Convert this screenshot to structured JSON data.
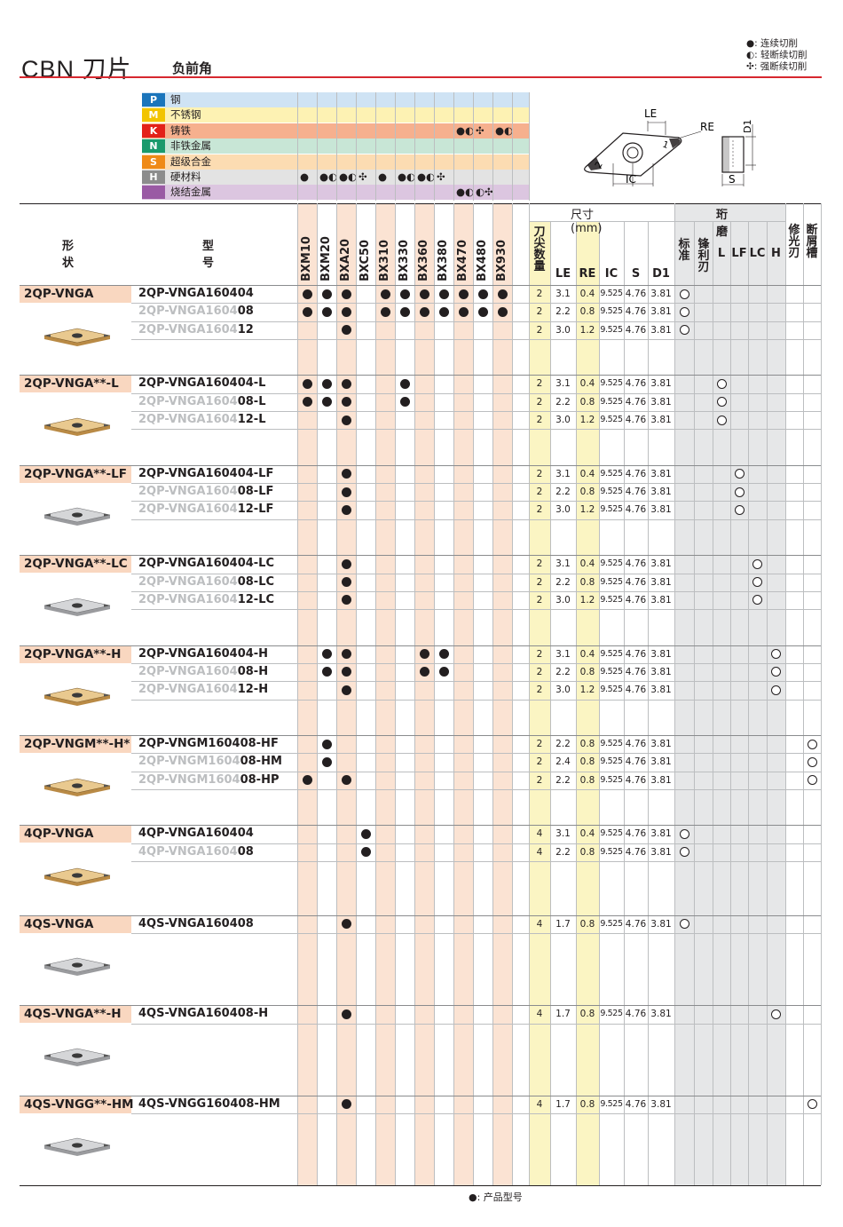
{
  "header": {
    "title": "CBN 刀片",
    "subtitle": "负前角",
    "legend": [
      {
        "symbol": "●",
        "label": ": 连续切削"
      },
      {
        "symbol": "◐",
        "label": ": 轻断续切削"
      },
      {
        "symbol": "✣",
        "label": ": 强断续切削"
      }
    ],
    "accent_color": "#d7282f"
  },
  "materials": [
    {
      "code": "P",
      "name": "钢",
      "code_color": "#1b75bb",
      "band_color": "#cfe3f4",
      "symbols": []
    },
    {
      "code": "M",
      "name": "不锈钢",
      "code_color": "#f2c400",
      "band_color": "#fdf2b3",
      "symbols": []
    },
    {
      "code": "K",
      "name": "铸铁",
      "code_color": "#e32119",
      "band_color": "#f6b08e",
      "symbols": [
        {
          "col": 8,
          "sym": "●◐"
        },
        {
          "col": 9,
          "sym": "✣"
        },
        {
          "col": 10,
          "sym": "●◐"
        }
      ]
    },
    {
      "code": "N",
      "name": "非铁金属",
      "code_color": "#1a9a6c",
      "band_color": "#c8e6d6",
      "symbols": []
    },
    {
      "code": "S",
      "name": "超级合金",
      "code_color": "#ef8a17",
      "band_color": "#fcdcb2",
      "symbols": []
    },
    {
      "code": "H",
      "name": "硬材料",
      "code_color": "#8c8c8c",
      "band_color": "#e3e3e3",
      "symbols": [
        {
          "col": 0,
          "sym": "●"
        },
        {
          "col": 1,
          "sym": "●◐"
        },
        {
          "col": 2,
          "sym": "●◐"
        },
        {
          "col": 3,
          "sym": "✣"
        },
        {
          "col": 4,
          "sym": "●"
        },
        {
          "col": 5,
          "sym": "●◐"
        },
        {
          "col": 6,
          "sym": "●◐"
        },
        {
          "col": 7,
          "sym": "✣"
        }
      ]
    },
    {
      "code": "",
      "name": "烧结金属",
      "code_color": "#9a5aa4",
      "band_color": "#dcc6e0",
      "symbols": [
        {
          "col": 8,
          "sym": "●◐"
        },
        {
          "col": 9,
          "sym": "◐✣"
        }
      ]
    }
  ],
  "diagram_labels": {
    "le": "LE",
    "re": "RE",
    "ic": "IC",
    "s": "S",
    "d1": "D1",
    "corner1": "1",
    "corner2": "2"
  },
  "table_header": {
    "shape": "形状",
    "model": "型号",
    "grades": [
      "BXM10",
      "BXM20",
      "BXA20",
      "BXC50",
      "BX310",
      "BX330",
      "BX360",
      "BX380",
      "BX470",
      "BX480",
      "BX930"
    ],
    "tip_count": "刀尖数量",
    "dimensions": "尺寸 (mm)",
    "dim_cols": [
      "LE",
      "RE",
      "IC",
      "S",
      "D1"
    ],
    "hone": "珩磨",
    "hone_cols": [
      "标准",
      "锋利刃",
      "L",
      "LF",
      "LC",
      "H"
    ],
    "wiper": "修光刃",
    "chipbreaker": "断屑槽"
  },
  "groups": [
    {
      "tag": "2QP-VNGA",
      "insert": "gold",
      "rows": [
        {
          "prefix": "",
          "model": "2QP-VNGA160404",
          "dots": [
            0,
            1,
            2,
            4,
            5,
            6,
            7,
            8,
            9,
            10
          ],
          "tips": "2",
          "le": "3.1",
          "re": "0.4",
          "ic": "9.525",
          "s": "4.76",
          "d1": "3.81",
          "ring": 0
        },
        {
          "prefix": "2QP-VNGA1604",
          "model": "08",
          "dots": [
            0,
            1,
            2,
            4,
            5,
            6,
            7,
            8,
            9,
            10
          ],
          "tips": "2",
          "le": "2.2",
          "re": "0.8",
          "ic": "9.525",
          "s": "4.76",
          "d1": "3.81",
          "ring": 0
        },
        {
          "prefix": "2QP-VNGA1604",
          "model": "12",
          "dots": [
            2
          ],
          "tips": "2",
          "le": "3.0",
          "re": "1.2",
          "ic": "9.525",
          "s": "4.76",
          "d1": "3.81",
          "ring": 0
        }
      ]
    },
    {
      "tag": "2QP-VNGA**-L",
      "insert": "gold",
      "rows": [
        {
          "prefix": "",
          "model": "2QP-VNGA160404-L",
          "dots": [
            0,
            1,
            2,
            5
          ],
          "tips": "2",
          "le": "3.1",
          "re": "0.4",
          "ic": "9.525",
          "s": "4.76",
          "d1": "3.81",
          "ring": 2
        },
        {
          "prefix": "2QP-VNGA1604",
          "model": "08-L",
          "dots": [
            0,
            1,
            2,
            5
          ],
          "tips": "2",
          "le": "2.2",
          "re": "0.8",
          "ic": "9.525",
          "s": "4.76",
          "d1": "3.81",
          "ring": 2
        },
        {
          "prefix": "2QP-VNGA1604",
          "model": "12-L",
          "dots": [
            2
          ],
          "tips": "2",
          "le": "3.0",
          "re": "1.2",
          "ic": "9.525",
          "s": "4.76",
          "d1": "3.81",
          "ring": 2
        }
      ]
    },
    {
      "tag": "2QP-VNGA**-LF",
      "insert": "silver",
      "rows": [
        {
          "prefix": "",
          "model": "2QP-VNGA160404-LF",
          "dots": [
            2
          ],
          "tips": "2",
          "le": "3.1",
          "re": "0.4",
          "ic": "9.525",
          "s": "4.76",
          "d1": "3.81",
          "ring": 3
        },
        {
          "prefix": "2QP-VNGA1604",
          "model": "08-LF",
          "dots": [
            2
          ],
          "tips": "2",
          "le": "2.2",
          "re": "0.8",
          "ic": "9.525",
          "s": "4.76",
          "d1": "3.81",
          "ring": 3
        },
        {
          "prefix": "2QP-VNGA1604",
          "model": "12-LF",
          "dots": [
            2
          ],
          "tips": "2",
          "le": "3.0",
          "re": "1.2",
          "ic": "9.525",
          "s": "4.76",
          "d1": "3.81",
          "ring": 3
        }
      ]
    },
    {
      "tag": "2QP-VNGA**-LC",
      "insert": "silver",
      "rows": [
        {
          "prefix": "",
          "model": "2QP-VNGA160404-LC",
          "dots": [
            2
          ],
          "tips": "2",
          "le": "3.1",
          "re": "0.4",
          "ic": "9.525",
          "s": "4.76",
          "d1": "3.81",
          "ring": 4
        },
        {
          "prefix": "2QP-VNGA1604",
          "model": "08-LC",
          "dots": [
            2
          ],
          "tips": "2",
          "le": "2.2",
          "re": "0.8",
          "ic": "9.525",
          "s": "4.76",
          "d1": "3.81",
          "ring": 4
        },
        {
          "prefix": "2QP-VNGA1604",
          "model": "12-LC",
          "dots": [
            2
          ],
          "tips": "2",
          "le": "3.0",
          "re": "1.2",
          "ic": "9.525",
          "s": "4.76",
          "d1": "3.81",
          "ring": 4
        }
      ]
    },
    {
      "tag": "2QP-VNGA**-H",
      "insert": "gold",
      "rows": [
        {
          "prefix": "",
          "model": "2QP-VNGA160404-H",
          "dots": [
            1,
            2,
            6,
            7
          ],
          "tips": "2",
          "le": "3.1",
          "re": "0.4",
          "ic": "9.525",
          "s": "4.76",
          "d1": "3.81",
          "ring": 5
        },
        {
          "prefix": "2QP-VNGA1604",
          "model": "08-H",
          "dots": [
            1,
            2,
            6,
            7
          ],
          "tips": "2",
          "le": "2.2",
          "re": "0.8",
          "ic": "9.525",
          "s": "4.76",
          "d1": "3.81",
          "ring": 5
        },
        {
          "prefix": "2QP-VNGA1604",
          "model": "12-H",
          "dots": [
            2
          ],
          "tips": "2",
          "le": "3.0",
          "re": "1.2",
          "ic": "9.525",
          "s": "4.76",
          "d1": "3.81",
          "ring": 5
        }
      ]
    },
    {
      "tag": "2QP-VNGM**-H*",
      "insert": "gold",
      "rows": [
        {
          "prefix": "",
          "model": "2QP-VNGM160408-HF",
          "dots": [
            1
          ],
          "tips": "2",
          "le": "2.2",
          "re": "0.8",
          "ic": "9.525",
          "s": "4.76",
          "d1": "3.81",
          "ring": 7
        },
        {
          "prefix": "2QP-VNGM1604",
          "model": "08-HM",
          "dots": [
            1
          ],
          "tips": "2",
          "le": "2.4",
          "re": "0.8",
          "ic": "9.525",
          "s": "4.76",
          "d1": "3.81",
          "ring": 7
        },
        {
          "prefix": "2QP-VNGM1604",
          "model": "08-HP",
          "dots": [
            0,
            2
          ],
          "tips": "2",
          "le": "2.2",
          "re": "0.8",
          "ic": "9.525",
          "s": "4.76",
          "d1": "3.81",
          "ring": 7
        }
      ]
    },
    {
      "tag": "4QP-VNGA",
      "insert": "gold",
      "rows": [
        {
          "prefix": "",
          "model": "4QP-VNGA160404",
          "dots": [
            3
          ],
          "tips": "4",
          "le": "3.1",
          "re": "0.4",
          "ic": "9.525",
          "s": "4.76",
          "d1": "3.81",
          "ring": 0
        },
        {
          "prefix": "4QP-VNGA1604",
          "model": "08",
          "dots": [
            3
          ],
          "tips": "4",
          "le": "2.2",
          "re": "0.8",
          "ic": "9.525",
          "s": "4.76",
          "d1": "3.81",
          "ring": 0
        }
      ]
    },
    {
      "tag": "4QS-VNGA",
      "insert": "silver",
      "rows": [
        {
          "prefix": "",
          "model": "4QS-VNGA160408",
          "dots": [
            2
          ],
          "tips": "4",
          "le": "1.7",
          "re": "0.8",
          "ic": "9.525",
          "s": "4.76",
          "d1": "3.81",
          "ring": 0
        }
      ]
    },
    {
      "tag": "4QS-VNGA**-H",
      "insert": "silver",
      "rows": [
        {
          "prefix": "",
          "model": "4QS-VNGA160408-H",
          "dots": [
            2
          ],
          "tips": "4",
          "le": "1.7",
          "re": "0.8",
          "ic": "9.525",
          "s": "4.76",
          "d1": "3.81",
          "ring": 5
        }
      ]
    },
    {
      "tag": "4QS-VNGG**-HM",
      "insert": "silver",
      "rows": [
        {
          "prefix": "",
          "model": "4QS-VNGG160408-HM",
          "dots": [
            2
          ],
          "tips": "4",
          "le": "1.7",
          "re": "0.8",
          "ic": "9.525",
          "s": "4.76",
          "d1": "3.81",
          "ring": 7
        }
      ]
    }
  ],
  "footer": {
    "symbol": "●",
    "label": ": 产品型号"
  }
}
